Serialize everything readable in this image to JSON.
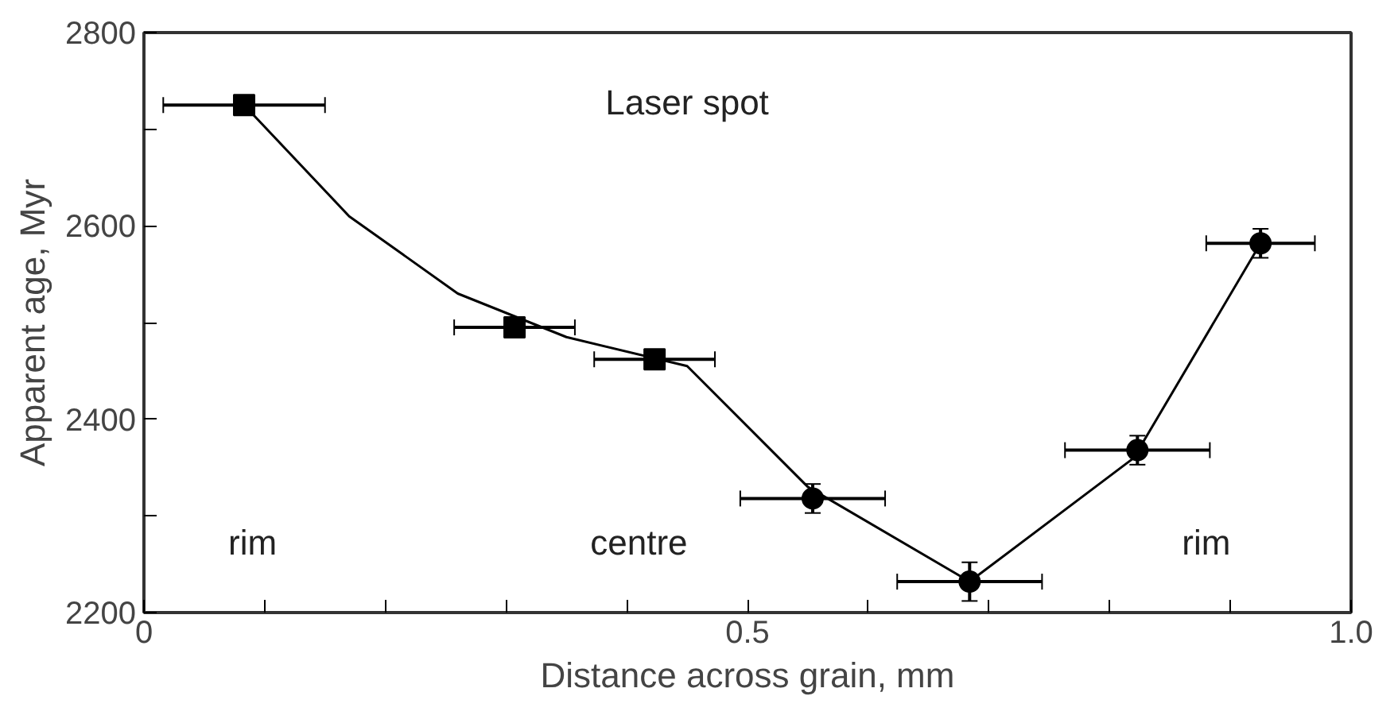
{
  "chart_data": {
    "type": "scatter",
    "xlabel": "Distance across grain, mm",
    "ylabel": "Apparent age, Myr",
    "xlim": [
      0,
      1.0
    ],
    "ylim": [
      2200,
      2800
    ],
    "xticks": [
      0,
      {
        "value": 0.1,
        "label": null
      },
      {
        "value": 0.2,
        "label": null
      },
      {
        "value": 0.3,
        "label": null
      },
      {
        "value": 0.4,
        "label": null
      },
      {
        "value": 0.5,
        "label": "0.5"
      },
      {
        "value": 0.6,
        "label": null
      },
      {
        "value": 0.7,
        "label": null
      },
      {
        "value": 0.8,
        "label": null
      },
      {
        "value": 0.9,
        "label": null
      },
      {
        "value": 1.0,
        "label": "1.0"
      }
    ],
    "yticks": [
      2200,
      {
        "value": 2300,
        "label": null
      },
      2400,
      {
        "value": 2500,
        "label": null
      },
      2600,
      {
        "value": 2700,
        "label": null
      },
      2800
    ],
    "grid": false,
    "series": [
      {
        "marker": "square",
        "color": "#000000",
        "x": [
          0.083,
          0.307,
          0.423
        ],
        "values": [
          2725,
          2495,
          2462
        ],
        "xerrors": [
          0.067,
          0.05,
          0.05
        ],
        "errors": [
          8,
          8,
          8
        ]
      },
      {
        "marker": "circle",
        "color": "#000000",
        "x": [
          0.554,
          0.684,
          0.823,
          0.925
        ],
        "values": [
          2318,
          2232,
          2368,
          2582
        ],
        "xerrors": [
          0.06,
          0.06,
          0.06,
          0.045
        ],
        "errors": [
          15,
          20,
          15,
          15
        ]
      },
      {
        "type": "line",
        "marker": "none",
        "line_style": "solid",
        "color": "#000000",
        "x": [
          0.083,
          0.17,
          0.26,
          0.35,
          0.45,
          0.55,
          0.684,
          0.82,
          0.925
        ],
        "values": [
          2725,
          2610,
          2530,
          2485,
          2455,
          2330,
          2232,
          2360,
          2582
        ]
      }
    ],
    "annotations": [
      "Laser spot",
      "rim",
      "centre",
      "rim"
    ]
  }
}
